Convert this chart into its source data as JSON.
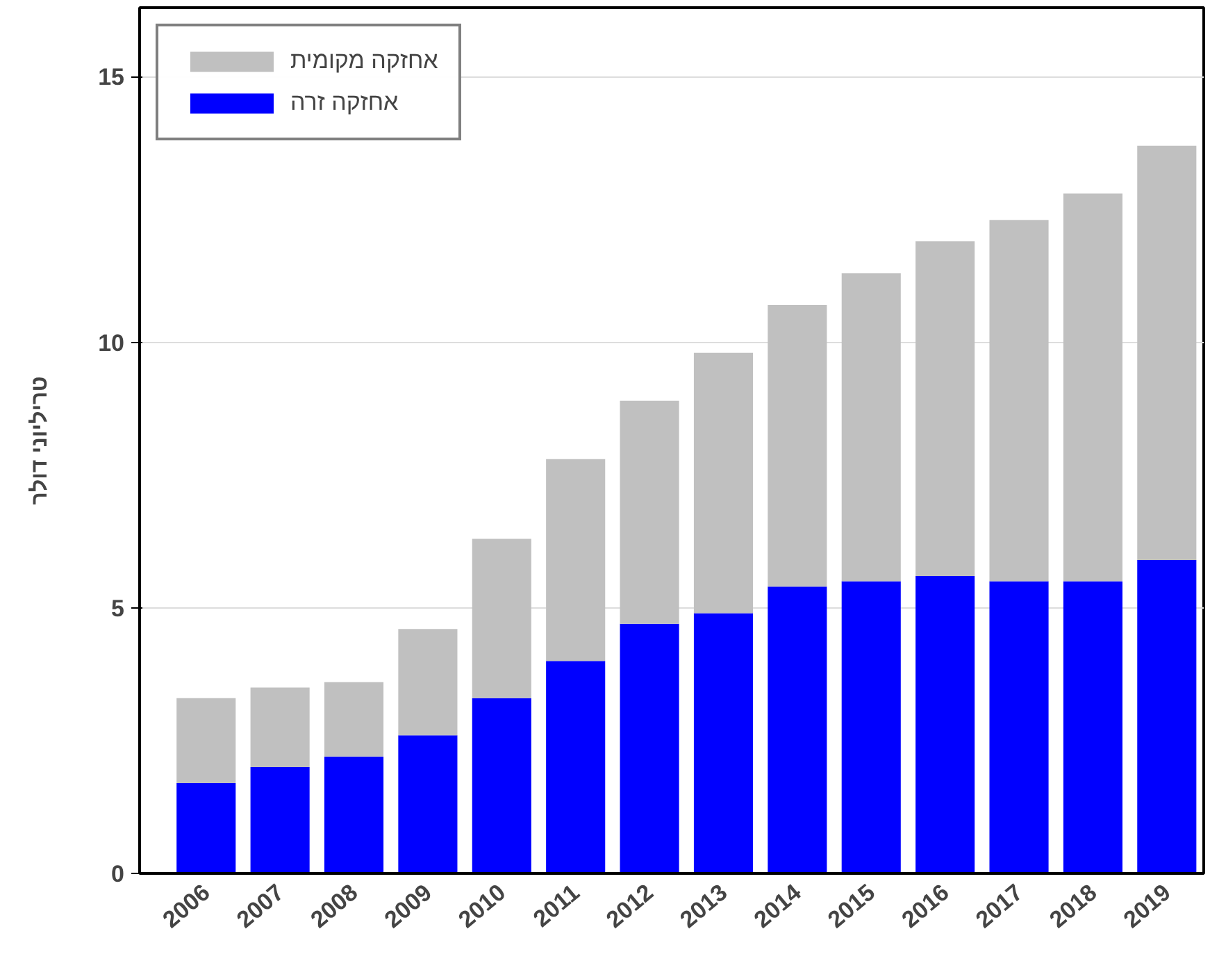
{
  "chart_data": {
    "type": "bar",
    "stacked": true,
    "ylabel": "טריליוני דולר",
    "categories": [
      "2006",
      "2007",
      "2008",
      "2009",
      "2010",
      "2011",
      "2012",
      "2013",
      "2014",
      "2015",
      "2016",
      "2017",
      "2018",
      "2019"
    ],
    "series": [
      {
        "name": "אחזקה זרה",
        "color": "#0000ff",
        "values": [
          1.7,
          2.0,
          2.2,
          2.6,
          3.3,
          4.0,
          4.7,
          4.9,
          5.4,
          5.5,
          5.6,
          5.5,
          5.5,
          5.9
        ]
      },
      {
        "name": "אחזקה מקומית",
        "color": "#c0c0c0",
        "values": [
          1.6,
          1.5,
          1.4,
          2.0,
          3.0,
          3.8,
          4.2,
          4.9,
          5.3,
          5.8,
          6.3,
          6.8,
          7.3,
          7.8
        ]
      }
    ],
    "ylim": [
      0,
      16.3
    ],
    "yticks": [
      0,
      5,
      10,
      15
    ],
    "grid": "y",
    "legend": "top left"
  }
}
